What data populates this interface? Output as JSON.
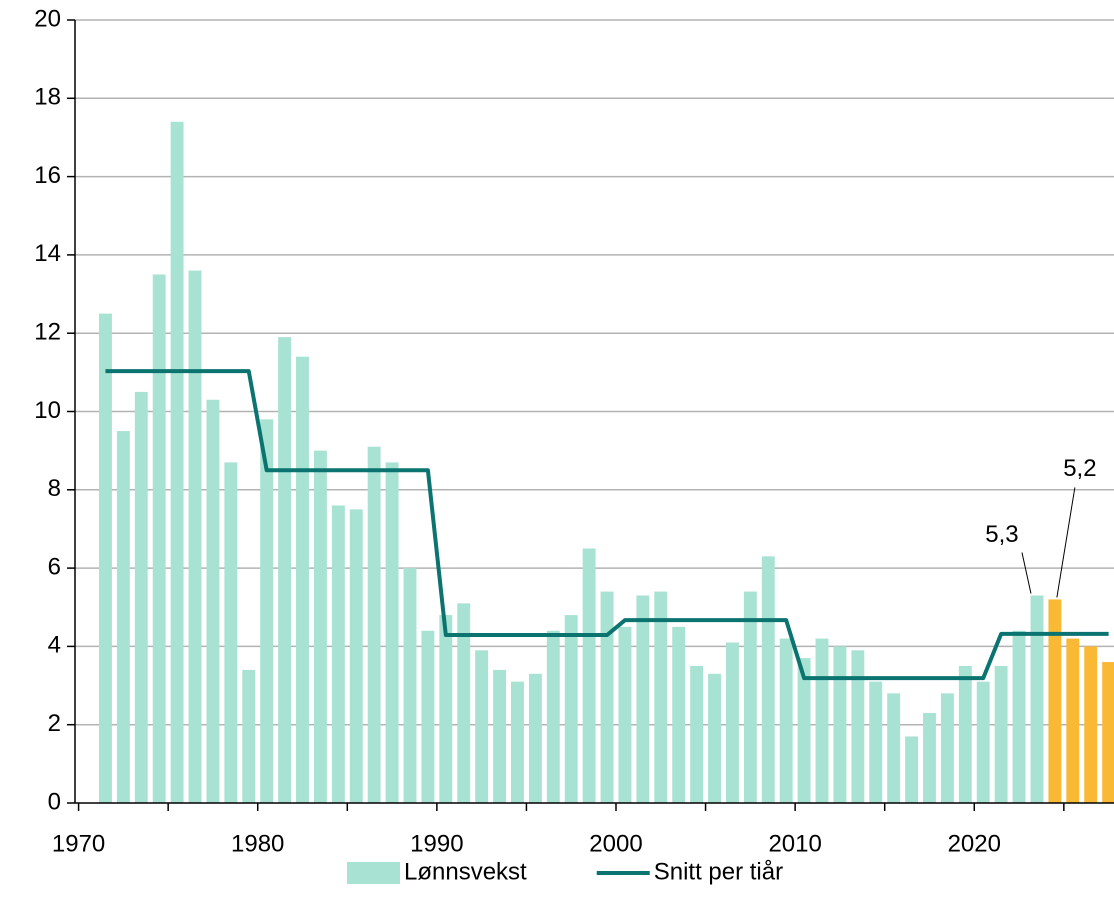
{
  "chart_data": {
    "type": "bar",
    "xlim": [
      1969.8,
      2027.8
    ],
    "xticks": [
      1970,
      1980,
      1990,
      2000,
      2010,
      2020
    ],
    "x_minor_ticks": [
      1975,
      1985,
      1995,
      2005,
      2015,
      2025
    ],
    "ylim": [
      0,
      20
    ],
    "yticks": [
      0,
      2,
      4,
      6,
      8,
      10,
      12,
      14,
      16,
      18,
      20
    ],
    "grid": true,
    "legend": "bottom",
    "series": [
      {
        "name": "Lønnsvekst",
        "color": "#a8e2d2",
        "x": [
          1971,
          1972,
          1973,
          1974,
          1975,
          1976,
          1977,
          1978,
          1979,
          1980,
          1981,
          1982,
          1983,
          1984,
          1985,
          1986,
          1987,
          1988,
          1989,
          1990,
          1991,
          1992,
          1993,
          1994,
          1995,
          1996,
          1997,
          1998,
          1999,
          2000,
          2001,
          2002,
          2003,
          2004,
          2005,
          2006,
          2007,
          2008,
          2009,
          2010,
          2011,
          2012,
          2013,
          2014,
          2015,
          2016,
          2017,
          2018,
          2019,
          2020,
          2021,
          2022,
          2023
        ],
        "values": [
          12.5,
          9.5,
          10.5,
          13.5,
          17.4,
          13.6,
          10.3,
          8.7,
          3.4,
          9.8,
          11.9,
          11.4,
          9.0,
          7.6,
          7.5,
          9.1,
          8.7,
          6.0,
          4.4,
          4.8,
          5.1,
          3.9,
          3.4,
          3.1,
          3.3,
          4.4,
          4.8,
          6.5,
          5.4,
          4.5,
          5.3,
          5.4,
          4.5,
          3.5,
          3.3,
          4.1,
          5.4,
          6.3,
          4.2,
          3.7,
          4.2,
          4.0,
          3.9,
          3.1,
          2.8,
          1.7,
          2.3,
          2.8,
          3.5,
          3.1,
          3.5,
          4.4,
          5.3
        ],
        "value_labels": [
          null,
          null,
          null,
          null,
          null,
          null,
          null,
          null,
          null,
          null,
          null,
          null,
          null,
          null,
          null,
          null,
          null,
          null,
          null,
          null,
          null,
          null,
          null,
          null,
          null,
          null,
          null,
          null,
          null,
          null,
          null,
          null,
          null,
          null,
          null,
          null,
          null,
          null,
          null,
          null,
          null,
          null,
          null,
          null,
          null,
          null,
          null,
          null,
          null,
          null,
          null,
          null,
          "5,3"
        ]
      },
      {
        "color": "#f9b934",
        "x": [
          2024,
          2025,
          2026,
          2027
        ],
        "values": [
          5.2,
          4.2,
          4.0,
          3.6
        ],
        "value_labels": [
          "5,2",
          null,
          null,
          null
        ]
      },
      {
        "name": "Snitt per tiår",
        "type": "line",
        "color": "#0b7470",
        "x": [
          1971,
          1972,
          1973,
          1974,
          1975,
          1976,
          1977,
          1978,
          1979,
          1980,
          1981,
          1982,
          1983,
          1984,
          1985,
          1986,
          1987,
          1988,
          1989,
          1990,
          1991,
          1992,
          1993,
          1994,
          1995,
          1996,
          1997,
          1998,
          1999,
          2000,
          2001,
          2002,
          2003,
          2004,
          2005,
          2006,
          2007,
          2008,
          2009,
          2010,
          2011,
          2012,
          2013,
          2014,
          2015,
          2016,
          2017,
          2018,
          2019,
          2020,
          2021,
          2022,
          2023,
          2024,
          2025,
          2026,
          2027
        ],
        "values": [
          11.03,
          11.03,
          11.03,
          11.03,
          11.03,
          11.03,
          11.03,
          11.03,
          11.03,
          8.5,
          8.5,
          8.5,
          8.5,
          8.5,
          8.5,
          8.5,
          8.5,
          8.5,
          8.5,
          4.29,
          4.29,
          4.29,
          4.29,
          4.29,
          4.29,
          4.29,
          4.29,
          4.29,
          4.29,
          4.67,
          4.67,
          4.67,
          4.67,
          4.67,
          4.67,
          4.67,
          4.67,
          4.67,
          4.67,
          3.19,
          3.19,
          3.19,
          3.19,
          3.19,
          3.19,
          3.19,
          3.19,
          3.19,
          3.19,
          3.19,
          4.32,
          4.32,
          4.32,
          4.32,
          4.32,
          4.32,
          4.32
        ]
      }
    ]
  }
}
